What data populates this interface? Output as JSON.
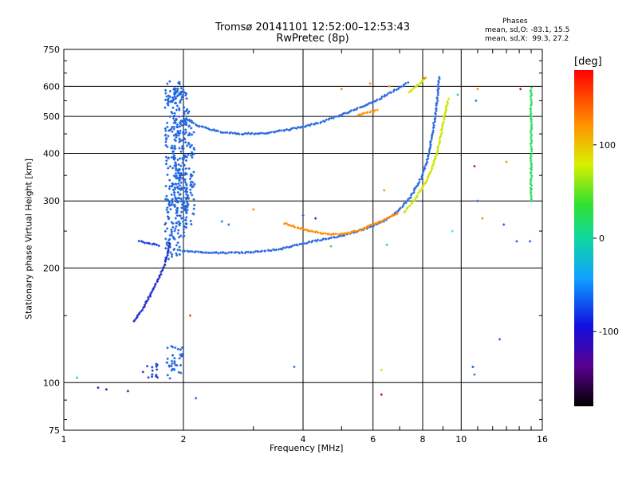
{
  "header": {
    "title_line1": "Tromsø 20141101 12:52:00–12:53:43",
    "title_line2": "RwPretec (8p)"
  },
  "stats": {
    "heading": "Phases",
    "line_o": "mean, sd,O: -83.1, 15.5",
    "line_x": "mean, sd,X:  99.3, 27.2"
  },
  "colorbar": {
    "unit_label": "[deg]",
    "ticks": [
      "100",
      "0",
      "-100"
    ],
    "tick_values": [
      100,
      0,
      -100
    ],
    "range": [
      -180,
      180
    ]
  },
  "chart_data": {
    "type": "scatter",
    "title": "Tromsø 20141101 12:52:00–12:53:43",
    "subtitle": "RwPretec (8p)",
    "xlabel": "Frequency [MHz]",
    "ylabel": "Stationary phase Virtual Height [km]",
    "xscale": "log",
    "yscale": "log",
    "xlim": [
      1,
      16
    ],
    "ylim": [
      75,
      750
    ],
    "grid": true,
    "xticks": [
      1,
      2,
      4,
      6,
      8,
      10,
      16
    ],
    "xtick_labels": [
      "1",
      "2",
      "4",
      "6",
      "8",
      "10",
      "16"
    ],
    "yticks": [
      75,
      100,
      200,
      300,
      400,
      500,
      600,
      750
    ],
    "ytick_labels": [
      "75",
      "100",
      "200",
      "300",
      "400",
      "500",
      "600",
      "750"
    ],
    "traces": [
      {
        "color": "#2a6ae0",
        "points": [
          [
            2.0,
            495
          ],
          [
            2.2,
            470
          ],
          [
            2.5,
            455
          ],
          [
            2.8,
            450
          ],
          [
            3.2,
            452
          ],
          [
            3.6,
            460
          ],
          [
            4.0,
            470
          ],
          [
            4.5,
            485
          ],
          [
            5.0,
            505
          ],
          [
            5.5,
            525
          ],
          [
            6.0,
            545
          ],
          [
            6.5,
            570
          ],
          [
            7.0,
            595
          ],
          [
            7.4,
            615
          ]
        ]
      },
      {
        "color": "#2a6ae0",
        "points": [
          [
            2.0,
            222
          ],
          [
            2.2,
            220
          ],
          [
            2.5,
            219
          ],
          [
            3.0,
            220
          ],
          [
            3.5,
            224
          ],
          [
            4.0,
            232
          ],
          [
            4.5,
            238
          ],
          [
            5.0,
            243
          ],
          [
            5.5,
            250
          ],
          [
            6.0,
            258
          ],
          [
            6.5,
            268
          ],
          [
            7.0,
            285
          ],
          [
            7.5,
            310
          ],
          [
            8.0,
            350
          ],
          [
            8.3,
            400
          ],
          [
            8.5,
            460
          ],
          [
            8.7,
            550
          ],
          [
            8.8,
            640
          ]
        ]
      },
      {
        "color": "#2040d0",
        "points": [
          [
            1.55,
            235
          ],
          [
            1.65,
            232
          ],
          [
            1.75,
            229
          ]
        ]
      },
      {
        "color": "#2030c8",
        "points": [
          [
            1.5,
            145
          ],
          [
            1.6,
            160
          ],
          [
            1.7,
            180
          ],
          [
            1.8,
            205
          ],
          [
            1.85,
            235
          ]
        ]
      },
      {
        "color": "#ff8a00",
        "points": [
          [
            3.6,
            262
          ],
          [
            3.9,
            255
          ],
          [
            4.2,
            250
          ],
          [
            4.5,
            246
          ],
          [
            4.8,
            245
          ],
          [
            5.2,
            247
          ],
          [
            5.6,
            252
          ],
          [
            6.0,
            260
          ],
          [
            6.5,
            270
          ],
          [
            7.0,
            280
          ]
        ]
      },
      {
        "color": "#c8e800",
        "points": [
          [
            7.2,
            280
          ],
          [
            7.6,
            300
          ],
          [
            8.0,
            325
          ],
          [
            8.4,
            360
          ],
          [
            8.7,
            400
          ],
          [
            8.9,
            450
          ],
          [
            9.1,
            510
          ],
          [
            9.3,
            560
          ]
        ]
      },
      {
        "color": "#c8e800",
        "points": [
          [
            7.4,
            580
          ],
          [
            7.7,
            600
          ],
          [
            8.0,
            620
          ],
          [
            8.2,
            640
          ]
        ]
      },
      {
        "color": "#ff9900",
        "points": [
          [
            5.5,
            505
          ],
          [
            6.0,
            515
          ],
          [
            6.2,
            520
          ]
        ]
      },
      {
        "color": "#30e060",
        "points": [
          [
            15.0,
            300
          ],
          [
            15.0,
            350
          ],
          [
            15.0,
            400
          ],
          [
            15.0,
            450
          ],
          [
            15.0,
            500
          ],
          [
            15.0,
            550
          ],
          [
            15.0,
            600
          ]
        ]
      }
    ],
    "clusters": [
      {
        "color": "#1f66e0",
        "x": 1.88,
        "y_from": 210,
        "y_to": 620
      },
      {
        "color": "#1f66e0",
        "x": 1.96,
        "y_from": 240,
        "y_to": 600
      },
      {
        "color": "#1f66e0",
        "x": 2.04,
        "y_from": 260,
        "y_to": 520
      },
      {
        "color": "#1f66e0",
        "x": 1.9,
        "y_from": 102,
        "y_to": 125
      },
      {
        "color": "#2040d0",
        "x": 1.65,
        "y_from": 103,
        "y_to": 112
      }
    ],
    "scatter": [
      {
        "x": 1.08,
        "y": 103,
        "color": "#20c8c8"
      },
      {
        "x": 1.22,
        "y": 97,
        "color": "#2030c8"
      },
      {
        "x": 1.28,
        "y": 96,
        "color": "#1830a0"
      },
      {
        "x": 1.45,
        "y": 95,
        "color": "#2030c8"
      },
      {
        "x": 2.08,
        "y": 150,
        "color": "#ff4000"
      },
      {
        "x": 2.15,
        "y": 91,
        "color": "#2060e0"
      },
      {
        "x": 2.5,
        "y": 265,
        "color": "#2080e0"
      },
      {
        "x": 2.6,
        "y": 260,
        "color": "#2080e0"
      },
      {
        "x": 3.0,
        "y": 285,
        "color": "#ff8a00"
      },
      {
        "x": 3.8,
        "y": 110,
        "color": "#2080e0"
      },
      {
        "x": 4.0,
        "y": 275,
        "color": "#2060e0"
      },
      {
        "x": 4.7,
        "y": 228,
        "color": "#30e060"
      },
      {
        "x": 6.3,
        "y": 108,
        "color": "#c8e800"
      },
      {
        "x": 6.3,
        "y": 93,
        "color": "#d01010"
      },
      {
        "x": 6.4,
        "y": 320,
        "color": "#ff8a00"
      },
      {
        "x": 6.5,
        "y": 230,
        "color": "#30e060"
      },
      {
        "x": 9.5,
        "y": 250,
        "color": "#60d0ff"
      },
      {
        "x": 9.8,
        "y": 570,
        "color": "#30e060"
      },
      {
        "x": 10.7,
        "y": 110,
        "color": "#2060e0"
      },
      {
        "x": 10.8,
        "y": 105,
        "color": "#2080e0"
      },
      {
        "x": 10.8,
        "y": 370,
        "color": "#d01010"
      },
      {
        "x": 10.9,
        "y": 550,
        "color": "#2080e0"
      },
      {
        "x": 11.0,
        "y": 590,
        "color": "#ff8a00"
      },
      {
        "x": 11.0,
        "y": 300,
        "color": "#2060e0"
      },
      {
        "x": 11.3,
        "y": 270,
        "color": "#ff8a00"
      },
      {
        "x": 12.5,
        "y": 130,
        "color": "#2060e0"
      },
      {
        "x": 12.8,
        "y": 260,
        "color": "#2060e0"
      },
      {
        "x": 13.0,
        "y": 380,
        "color": "#ff8a00"
      },
      {
        "x": 13.8,
        "y": 235,
        "color": "#2060e0"
      },
      {
        "x": 14.1,
        "y": 590,
        "color": "#d01010"
      },
      {
        "x": 14.9,
        "y": 235,
        "color": "#2060e0"
      },
      {
        "x": 4.3,
        "y": 270,
        "color": "#2030c8"
      },
      {
        "x": 5.9,
        "y": 610,
        "color": "#ff8a00"
      },
      {
        "x": 6.6,
        "y": 600,
        "color": "#ff8a00"
      },
      {
        "x": 8.1,
        "y": 630,
        "color": "#ff8a00"
      },
      {
        "x": 5.0,
        "y": 590,
        "color": "#ff8a00"
      }
    ]
  }
}
